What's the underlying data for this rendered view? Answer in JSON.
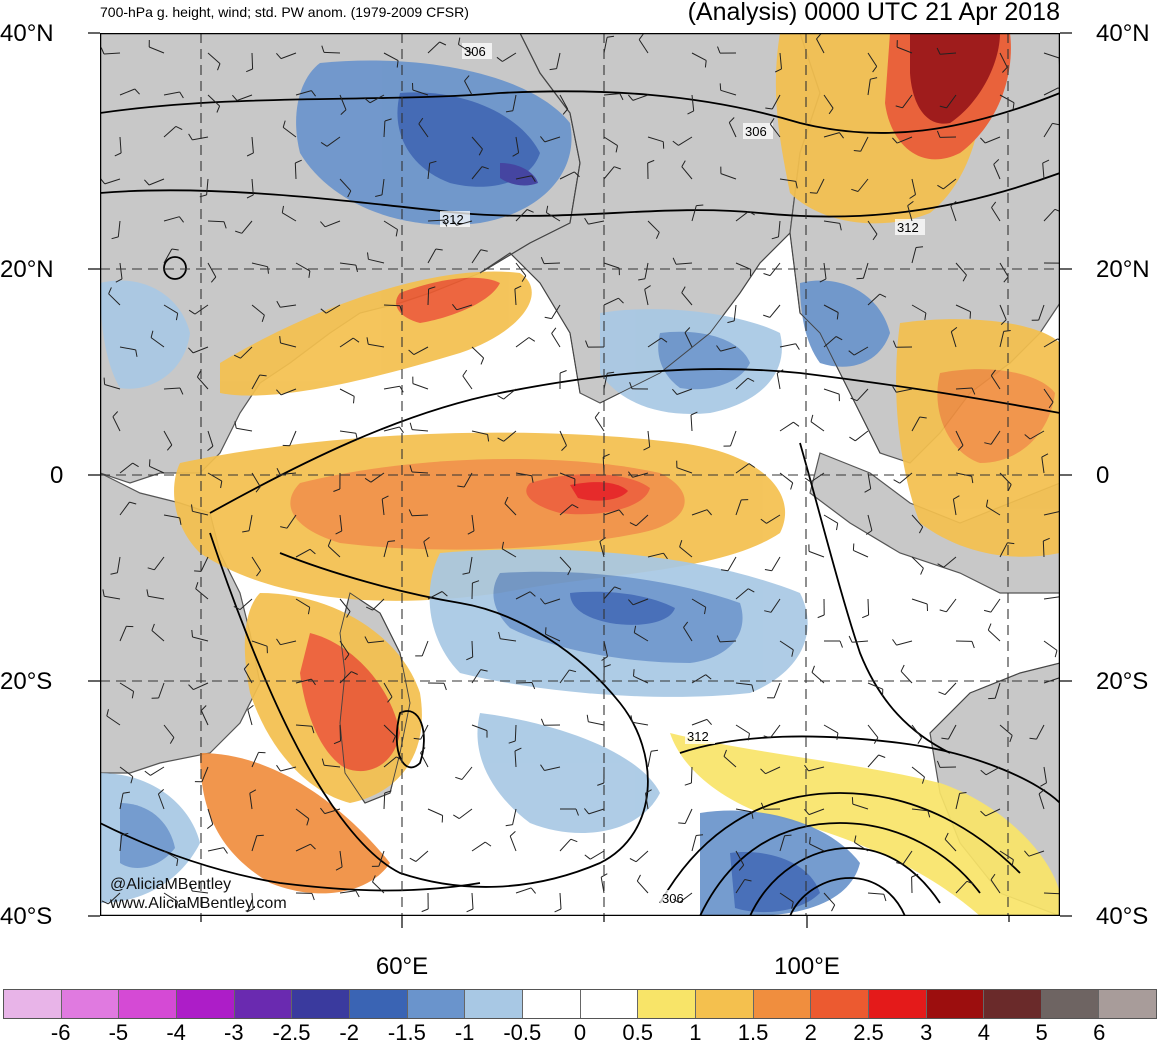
{
  "header": {
    "left_title": "700-hPa g. height, wind; std. PW anom. (1979-2009 CFSR)",
    "right_title": "(Analysis) 0000 UTC 21 Apr 2018"
  },
  "map": {
    "lat_labels": [
      "40°N",
      "20°N",
      "0",
      "20°S",
      "40°S"
    ],
    "lon_labels": [
      "60°E",
      "100°E"
    ],
    "contour_labels": [
      "306",
      "306",
      "312",
      "312",
      "312",
      "306"
    ],
    "land_color": "#c8c8c8",
    "coast_color": "#555555",
    "contour_color": "#000000"
  },
  "credits": {
    "handle": "@AliciaMBentley",
    "website": "www.AliciaMBentley.com"
  },
  "colorbar": {
    "colors": [
      "#e8b4e8",
      "#e07ae0",
      "#d54ad5",
      "#ad1dc8",
      "#6a2ab0",
      "#3a3a9e",
      "#3a64b4",
      "#6a94cc",
      "#a8c8e4",
      "#ffffff",
      "#ffffff",
      "#f8e468",
      "#f4c04e",
      "#f08e3e",
      "#ec5a30",
      "#e41a1a",
      "#9c0e0e",
      "#6a2a2a",
      "#6e6462",
      "#a89c9a"
    ],
    "labels": [
      "-6",
      "-5",
      "-4",
      "-3",
      "-2.5",
      "-2",
      "-1.5",
      "-1",
      "-0.5",
      "0",
      "0.5",
      "1",
      "1.5",
      "2",
      "2.5",
      "3",
      "4",
      "5",
      "6"
    ]
  }
}
